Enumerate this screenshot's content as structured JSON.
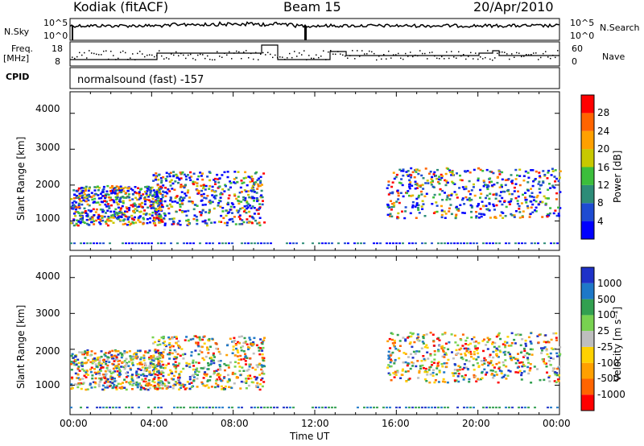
{
  "header": {
    "station": "Kodiak (fitACF)",
    "beam": "Beam 15",
    "date": "20/Apr/2010"
  },
  "top_panel_labels": {
    "nsky": "N.Sky",
    "nsky_hi": "10^5",
    "nsky_lo": "10^0",
    "nsky_hi_r": "10^5",
    "nsky_lo_r": "10^0",
    "nsearch": "N.Search",
    "freq": "Freq.",
    "freq_unit": "[MHz]",
    "freq_hi": "18",
    "freq_lo": "8",
    "nave_hi": "60",
    "nave_lo": "0",
    "nave": "Nave",
    "cpid": "CPID",
    "cpid_text": "normalsound (fast) -157"
  },
  "power_panel": {
    "ylabel": "Slant Range [km]",
    "yticks": [
      "4000",
      "3000",
      "2000",
      "1000"
    ],
    "colorbar_label": "Power [dB]",
    "colorbar_ticks": [
      "28",
      "24",
      "20",
      "16",
      "12",
      "8",
      "4"
    ],
    "colors": [
      "#0000ff",
      "#1e4bd2",
      "#2d8c78",
      "#3cbe3c",
      "#c8c800",
      "#ffa000",
      "#ff6400",
      "#ff0000"
    ]
  },
  "velocity_panel": {
    "ylabel": "Slant Range [km]",
    "yticks": [
      "4000",
      "3000",
      "2000",
      "1000"
    ],
    "colorbar_label": "Velocity [m s⁻¹]",
    "colorbar_ticks": [
      "1000",
      "500",
      "100",
      "25",
      "-25",
      "-100",
      "-500",
      "-1000"
    ],
    "colors": [
      "#1e32c8",
      "#1e78c8",
      "#32a050",
      "#78d250",
      "#bebebe",
      "#ffd200",
      "#ffa000",
      "#ff6400",
      "#ff0000"
    ]
  },
  "xaxis": {
    "label": "Time UT",
    "ticks": [
      "00:00",
      "04:00",
      "08:00",
      "12:00",
      "16:00",
      "20:00",
      "00:00"
    ]
  },
  "chart_data": {
    "type": "heatmap",
    "title": "Kodiak (fitACF)",
    "x": [
      "00:00",
      "04:00",
      "08:00",
      "12:00",
      "16:00",
      "20:00",
      "00:00"
    ],
    "xlabel": "Time UT",
    "ylabel": "Slant Range [km]",
    "ylim": [
      180,
      4600
    ],
    "panels": [
      {
        "name": "Power [dB]",
        "color_range": [
          0,
          30
        ]
      },
      {
        "name": "Velocity [m s⁻¹]",
        "color_range": [
          -1000,
          1000
        ]
      }
    ],
    "scatter_regions": [
      {
        "t_start": 0.0,
        "t_end": 4.5,
        "range_km": [
          900,
          2000
        ]
      },
      {
        "t_start": 4.0,
        "t_end": 9.5,
        "range_km": [
          900,
          2400
        ]
      },
      {
        "t_start": 15.5,
        "t_end": 24.0,
        "range_km": [
          1100,
          2500
        ]
      }
    ],
    "frequency_mhz": {
      "ylim": [
        8,
        18
      ],
      "typical": 10
    },
    "nave": {
      "ylim": [
        0,
        60
      ]
    }
  }
}
